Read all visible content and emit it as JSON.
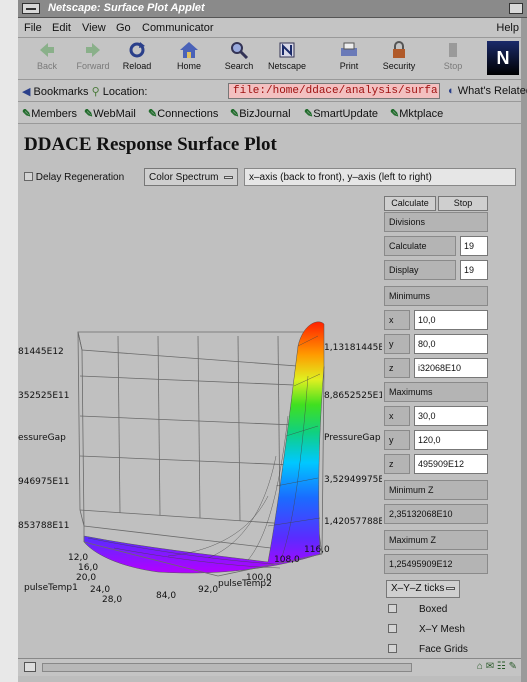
{
  "window": {
    "title": "Netscape: Surface Plot Applet"
  },
  "menu": [
    "File",
    "Edit",
    "View",
    "Go",
    "Communicator"
  ],
  "menu_help": "Help",
  "toolbar": [
    {
      "label": "Back",
      "icon": "back-arrow-icon",
      "enabled": false
    },
    {
      "label": "Forward",
      "icon": "forward-arrow-icon",
      "enabled": false
    },
    {
      "label": "Reload",
      "icon": "reload-icon",
      "enabled": true
    },
    {
      "label": "Home",
      "icon": "home-icon",
      "enabled": true
    },
    {
      "label": "Search",
      "icon": "search-icon",
      "enabled": true
    },
    {
      "label": "Netscape",
      "icon": "netscape-icon",
      "enabled": true
    },
    {
      "label": "Print",
      "icon": "print-icon",
      "enabled": true
    },
    {
      "label": "Security",
      "icon": "security-lock-icon",
      "enabled": true
    },
    {
      "label": "Stop",
      "icon": "stop-icon",
      "enabled": false
    }
  ],
  "location": {
    "bookmarks": "Bookmarks",
    "label": "Location:",
    "url": "file:/home/ddace/analysis/surfa",
    "related": "What's Related"
  },
  "personal": [
    "Members",
    "WebMail",
    "Connections",
    "BizJournal",
    "SmartUpdate",
    "Mktplace"
  ],
  "page": {
    "title": "DDACE Response Surface Plot",
    "delay_label": "Delay Regeneration",
    "spectrum": "Color Spectrum",
    "axis_info": "x–axis (back to front), y–axis (left to right)"
  },
  "panel": {
    "calculate_btn": "Calculate",
    "stop_btn": "Stop",
    "divisions": "Divisions",
    "calc_label": "Calculate",
    "calc_value": "19",
    "display_label": "Display",
    "display_value": "19",
    "minimums": "Minimums",
    "min_x_label": "x",
    "min_x": "10,0",
    "min_y_label": "y",
    "min_y": "80,0",
    "min_z_label": "z",
    "min_z": "i32068E10",
    "maximums": "Maximums",
    "max_x_label": "x",
    "max_x": "30,0",
    "max_y_label": "y",
    "max_y": "120,0",
    "max_z_label": "z",
    "max_z": "495909E12",
    "minimum_z_label": "Minimum Z",
    "minimum_z_value": "2,35132068E10",
    "maximum_z_label": "Maximum Z",
    "maximum_z_value": "1,25495909E12",
    "ticks": "X–Y–Z ticks",
    "boxed": "Boxed",
    "xy_mesh": "X–Y Mesh",
    "face_grids": "Face Grids"
  },
  "plot": {
    "left_labels": [
      "81445E12",
      "352525E11",
      "essureGap",
      "946975E11",
      "853788E11"
    ],
    "right_labels": [
      "1,13181445E",
      "8,8652525E1",
      "PressureGap",
      "3,52949975E",
      "1,42057788E"
    ],
    "x_ticks": [
      "12,0",
      "16,0",
      "20,0",
      "24,0",
      "28,0"
    ],
    "x_name": "pulseTemp1",
    "y_ticks": [
      "84,0",
      "92,0",
      "100,0",
      "108,0",
      "116,0"
    ],
    "y_name": "pulseTemp2"
  }
}
